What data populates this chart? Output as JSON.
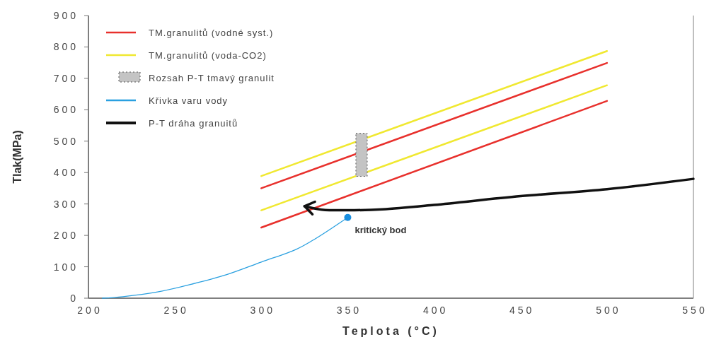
{
  "chart_data": {
    "type": "line",
    "xlabel": "Teplota (°C)",
    "ylabel": "Tlak(MPa)",
    "xlim": [
      200,
      550
    ],
    "xticks": [
      200,
      250,
      300,
      350,
      400,
      450,
      500,
      550
    ],
    "ylim": [
      0,
      900
    ],
    "yticks": [
      0,
      100,
      200,
      300,
      400,
      500,
      600,
      700,
      800,
      900
    ],
    "grid": false,
    "legend": "top left",
    "line_style": "solid",
    "annotations": [
      {
        "text": "kritický bod",
        "x": 350,
        "y": 257
      }
    ],
    "series": [
      {
        "name": "TM.granulitů (vodné syst.)",
        "color": "#e8302c",
        "x": [
          300,
          500
        ],
        "values": [
          350,
          749
        ]
      },
      {
        "color": "#e8302c",
        "x": [
          300,
          500
        ],
        "values": [
          225,
          628
        ]
      },
      {
        "name": "TM.granulitů (voda-CO2)",
        "color": "#f0e830",
        "x": [
          300,
          500
        ],
        "values": [
          389,
          787
        ]
      },
      {
        "color": "#f0e830",
        "x": [
          300,
          500
        ],
        "values": [
          280,
          678
        ]
      },
      {
        "name": "Rozsah P-T tmavý granulit",
        "type": "bar",
        "color": "#c4c4c4",
        "x": [
          358
        ],
        "values": [
          137
        ],
        "base": [
          388
        ]
      },
      {
        "name": "Křivka varu vody",
        "color": "#2aa0e0",
        "x": [
          208,
          220,
          240,
          260,
          280,
          300,
          320,
          330,
          340,
          350
        ],
        "values": [
          0,
          5,
          20,
          45,
          75,
          115,
          155,
          185,
          220,
          257
        ]
      },
      {
        "type": "scatter",
        "color": "#1a8fe0",
        "x": [
          350
        ],
        "values": [
          257
        ]
      },
      {
        "name": "P-T dráha granuitů",
        "color": "#111111",
        "x": [
          550,
          500,
          450,
          400,
          370,
          350,
          335,
          325
        ],
        "values": [
          380,
          347,
          325,
          297,
          283,
          280,
          282,
          293
        ]
      }
    ]
  }
}
